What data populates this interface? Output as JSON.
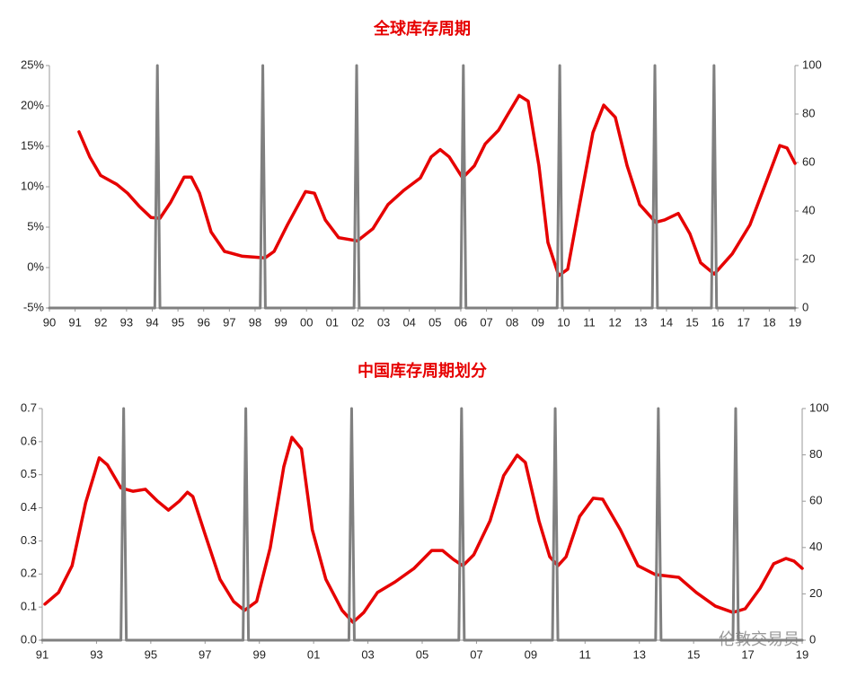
{
  "chart_data": [
    {
      "type": "line",
      "title": "全球库存周期",
      "xlim": [
        1990,
        2019
      ],
      "xticks": [
        {
          "value": 1990,
          "label": "90"
        },
        {
          "value": 1991,
          "label": "91"
        },
        {
          "value": 1992,
          "label": "92"
        },
        {
          "value": 1993,
          "label": "93"
        },
        {
          "value": 1994,
          "label": "94"
        },
        {
          "value": 1995,
          "label": "95"
        },
        {
          "value": 1996,
          "label": "96"
        },
        {
          "value": 1997,
          "label": "97"
        },
        {
          "value": 1998,
          "label": "98"
        },
        {
          "value": 1999,
          "label": "99"
        },
        {
          "value": 2000,
          "label": "00"
        },
        {
          "value": 2001,
          "label": "01"
        },
        {
          "value": 2002,
          "label": "02"
        },
        {
          "value": 2003,
          "label": "03"
        },
        {
          "value": 2004,
          "label": "04"
        },
        {
          "value": 2005,
          "label": "05"
        },
        {
          "value": 2006,
          "label": "06"
        },
        {
          "value": 2007,
          "label": "07"
        },
        {
          "value": 2008,
          "label": "08"
        },
        {
          "value": 2009,
          "label": "09"
        },
        {
          "value": 2010,
          "label": "10"
        },
        {
          "value": 2011,
          "label": "11"
        },
        {
          "value": 2012,
          "label": "12"
        },
        {
          "value": 2013,
          "label": "13"
        },
        {
          "value": 2014,
          "label": "14"
        },
        {
          "value": 2015,
          "label": "15"
        },
        {
          "value": 2016,
          "label": "16"
        },
        {
          "value": 2017,
          "label": "17"
        },
        {
          "value": 2018,
          "label": "18"
        },
        {
          "value": 2019,
          "label": "19"
        }
      ],
      "ylim": [
        -5,
        25
      ],
      "yticks": [
        {
          "value": -5,
          "label": "-5%"
        },
        {
          "value": 0,
          "label": "0%"
        },
        {
          "value": 5,
          "label": "5%"
        },
        {
          "value": 10,
          "label": "10%"
        },
        {
          "value": 15,
          "label": "15%"
        },
        {
          "value": 20,
          "label": "20%"
        },
        {
          "value": 25,
          "label": "25%"
        }
      ],
      "y2lim": [
        0,
        100
      ],
      "y2ticks": [
        0,
        20,
        40,
        60,
        80,
        100
      ],
      "grid": false,
      "series": [
        {
          "color": "#e60000",
          "x": [
            1991.15,
            1991.57,
            1991.99,
            1992.62,
            1993.04,
            1993.49,
            1993.95,
            1994.3,
            1994.72,
            1995.24,
            1995.52,
            1995.84,
            1996.29,
            1996.81,
            1997.51,
            1998.39,
            1998.74,
            1999.26,
            1999.96,
            2000.31,
            2000.73,
            2001.25,
            2001.98,
            2002.58,
            2003.17,
            2003.8,
            2004.43,
            2004.85,
            2005.2,
            2005.55,
            2006.07,
            2006.53,
            2006.95,
            2007.47,
            2007.82,
            2008.27,
            2008.62,
            2009.04,
            2009.39,
            2009.81,
            2010.16,
            2010.61,
            2011.14,
            2011.56,
            2012.01,
            2012.47,
            2012.96,
            2013.58,
            2013.93,
            2014.46,
            2014.91,
            2015.33,
            2015.86,
            2016.56,
            2017.25,
            2017.88,
            2018.41,
            2018.69,
            2019.0
          ],
          "values": [
            16.8,
            13.7,
            11.4,
            10.3,
            9.2,
            7.6,
            6.2,
            6.1,
            8.1,
            11.2,
            11.2,
            9.2,
            4.4,
            2.0,
            1.4,
            1.2,
            2.0,
            5.3,
            9.4,
            9.2,
            5.9,
            3.7,
            3.3,
            4.8,
            7.8,
            9.6,
            11.1,
            13.7,
            14.6,
            13.7,
            11.1,
            12.6,
            15.3,
            17.0,
            18.9,
            21.3,
            20.6,
            12.6,
            3.1,
            -1.0,
            -0.2,
            7.6,
            16.7,
            20.1,
            18.6,
            12.6,
            7.8,
            5.6,
            5.9,
            6.7,
            4.2,
            0.6,
            -0.8,
            1.7,
            5.3,
            10.6,
            15.1,
            14.8,
            12.9
          ]
        },
        {
          "color": "#808080",
          "axis": "y2",
          "x": [
            1990,
            1994.1,
            1994.2,
            1994.3,
            1998.2,
            1998.3,
            1998.4,
            2001.85,
            2001.95,
            2002.05,
            2006.0,
            2006.1,
            2006.2,
            2009.75,
            2009.85,
            2009.95,
            2013.45,
            2013.55,
            2013.65,
            2015.75,
            2015.85,
            2015.95,
            2019
          ],
          "values": [
            0,
            0,
            100,
            0,
            0,
            100,
            0,
            0,
            100,
            0,
            0,
            100,
            0,
            0,
            100,
            0,
            0,
            100,
            0,
            0,
            100,
            0,
            0
          ]
        }
      ]
    },
    {
      "type": "line",
      "title": "中国库存周期划分",
      "xlim": [
        1991,
        2019
      ],
      "xticks": [
        {
          "value": 1991,
          "label": "91"
        },
        {
          "value": 1993,
          "label": "93"
        },
        {
          "value": 1995,
          "label": "95"
        },
        {
          "value": 1997,
          "label": "97"
        },
        {
          "value": 1999,
          "label": "99"
        },
        {
          "value": 2001,
          "label": "01"
        },
        {
          "value": 2003,
          "label": "03"
        },
        {
          "value": 2005,
          "label": "05"
        },
        {
          "value": 2007,
          "label": "07"
        },
        {
          "value": 2009,
          "label": "09"
        },
        {
          "value": 2011,
          "label": "11"
        },
        {
          "value": 2013,
          "label": "13"
        },
        {
          "value": 2015,
          "label": "15"
        },
        {
          "value": 2017,
          "label": "17"
        },
        {
          "value": 2019,
          "label": "19"
        }
      ],
      "ylim": [
        0,
        0.7
      ],
      "yticks": [
        {
          "value": 0,
          "label": "0.0"
        },
        0.1,
        0.2,
        0.3,
        0.4,
        0.5,
        0.6,
        0.7
      ],
      "y2lim": [
        0,
        100
      ],
      "y2ticks": [
        0,
        20,
        40,
        60,
        80,
        100
      ],
      "grid": false,
      "series": [
        {
          "color": "#e60000",
          "x": [
            1991.1,
            1991.6,
            1992.1,
            1992.6,
            1993.1,
            1993.4,
            1993.9,
            1994.35,
            1994.8,
            1995.25,
            1995.65,
            1996.05,
            1996.35,
            1996.55,
            1997.0,
            1997.55,
            1998.05,
            1998.45,
            1998.9,
            1999.4,
            1999.9,
            2000.2,
            2000.55,
            2000.95,
            2001.45,
            2002.05,
            2002.45,
            2002.85,
            2003.35,
            2004.0,
            2004.7,
            2005.35,
            2005.75,
            2006.15,
            2006.5,
            2006.9,
            2007.5,
            2008.0,
            2008.5,
            2008.8,
            2009.3,
            2009.7,
            2010.0,
            2010.3,
            2010.8,
            2011.3,
            2011.65,
            2012.3,
            2012.95,
            2013.6,
            2014.45,
            2015.1,
            2015.8,
            2016.45,
            2016.9,
            2017.45,
            2017.95,
            2018.4,
            2018.7,
            2019.0
          ],
          "values": [
            0.109,
            0.144,
            0.225,
            0.415,
            0.551,
            0.53,
            0.46,
            0.45,
            0.456,
            0.42,
            0.393,
            0.42,
            0.447,
            0.434,
            0.32,
            0.184,
            0.117,
            0.09,
            0.117,
            0.279,
            0.524,
            0.613,
            0.578,
            0.334,
            0.184,
            0.09,
            0.054,
            0.084,
            0.144,
            0.176,
            0.217,
            0.271,
            0.271,
            0.244,
            0.225,
            0.258,
            0.361,
            0.497,
            0.559,
            0.537,
            0.361,
            0.252,
            0.225,
            0.252,
            0.374,
            0.429,
            0.426,
            0.334,
            0.225,
            0.198,
            0.19,
            0.144,
            0.103,
            0.084,
            0.095,
            0.157,
            0.231,
            0.247,
            0.239,
            0.217
          ]
        },
        {
          "color": "#808080",
          "axis": "y2",
          "x": [
            1991,
            1993.9,
            1994.0,
            1994.1,
            1998.4,
            1998.5,
            1998.6,
            2002.3,
            2002.4,
            2002.5,
            2006.35,
            2006.45,
            2006.55,
            2009.8,
            2009.9,
            2010.0,
            2013.6,
            2013.7,
            2013.8,
            2016.45,
            2016.55,
            2016.65,
            2019
          ],
          "values": [
            0,
            0,
            100,
            0,
            0,
            100,
            0,
            0,
            100,
            0,
            0,
            100,
            0,
            0,
            100,
            0,
            0,
            100,
            0,
            0,
            100,
            0,
            0
          ]
        }
      ]
    }
  ],
  "watermark": "伦敦交易员"
}
